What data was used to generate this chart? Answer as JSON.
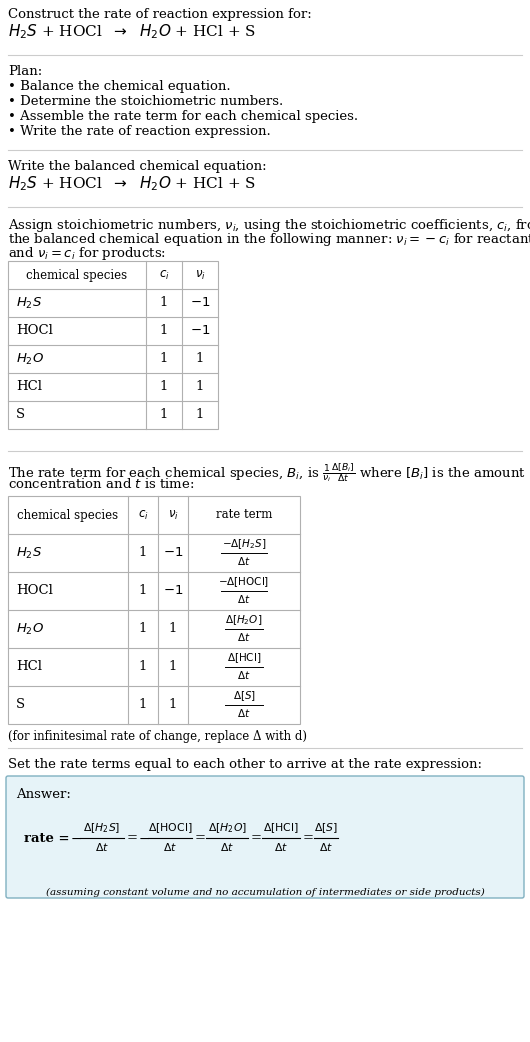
{
  "title_line1": "Construct the rate of reaction expression for:",
  "plan_header": "Plan:",
  "plan_items": [
    "• Balance the chemical equation.",
    "• Determine the stoichiometric numbers.",
    "• Assemble the rate term for each chemical species.",
    "• Write the rate of reaction expression."
  ],
  "balanced_header": "Write the balanced chemical equation:",
  "infinitesimal_note": "(for infinitesimal rate of change, replace Δ with d)",
  "set_equal_text": "Set the rate terms equal to each other to arrive at the rate expression:",
  "answer_label": "Answer:",
  "assuming_note": "(assuming constant volume and no accumulation of intermediates or side products)",
  "bg_color": "#ffffff",
  "text_color": "#000000",
  "table_border_color": "#b0b0b0",
  "sep_color": "#cccccc",
  "answer_box_bg": "#e6f3f8",
  "answer_box_border": "#80b0c0"
}
